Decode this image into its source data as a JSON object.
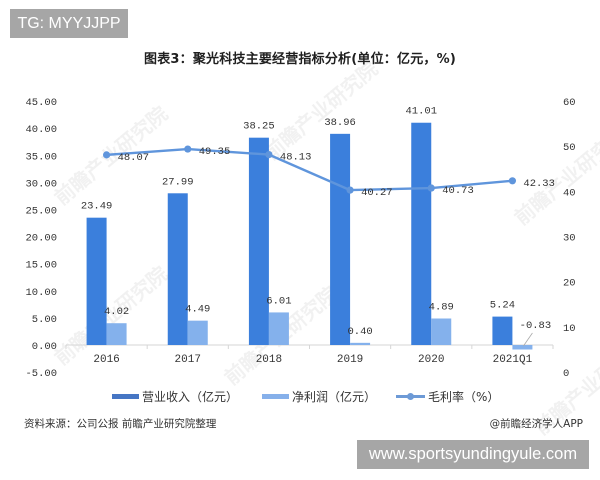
{
  "header": {
    "badge": "TG: MYYJJPP"
  },
  "chart_data": {
    "type": "bar",
    "combo": "bar+line (dual axis)",
    "title": "图表3：聚光科技主要经营指标分析(单位：亿元，%)",
    "xlabel": "",
    "ylabel": "",
    "categories": [
      "2016",
      "2017",
      "2018",
      "2019",
      "2020",
      "2021Q1"
    ],
    "series": [
      {
        "name": "营业收入（亿元）",
        "type": "bar",
        "axis": "left",
        "color": "#3b7fdc",
        "legend_color": "#4676c4",
        "values": [
          23.49,
          27.99,
          38.25,
          38.96,
          41.01,
          5.24
        ],
        "labels": [
          "23.49",
          "27.99",
          "38.25",
          "38.96",
          "41.01",
          "5.24"
        ]
      },
      {
        "name": "净利润（亿元）",
        "type": "bar",
        "axis": "left",
        "color": "#84b1ec",
        "legend_color": "#86b0ea",
        "values": [
          4.02,
          4.49,
          6.01,
          0.4,
          4.89,
          -0.83
        ],
        "labels": [
          "4.02",
          "4.49",
          "6.01",
          "0.40",
          "4.89",
          "-0.83"
        ]
      },
      {
        "name": "毛利率（%）",
        "type": "line",
        "axis": "right",
        "color": "#5f95dc",
        "legend_color": "#6d9ad6",
        "values": [
          48.07,
          49.35,
          48.13,
          40.27,
          40.73,
          42.33
        ],
        "labels": [
          "48.07",
          "49.35",
          "48.13",
          "40.27",
          "40.73",
          "42.33"
        ]
      }
    ],
    "y_left": {
      "ylim": [
        -5,
        45
      ],
      "ticks": [
        {
          "value": 45,
          "label": "45.00"
        },
        {
          "value": 40,
          "label": "40.00"
        },
        {
          "value": 35,
          "label": "35.00"
        },
        {
          "value": 30,
          "label": "30.00"
        },
        {
          "value": 25,
          "label": "25.00"
        },
        {
          "value": 20,
          "label": "20.00"
        },
        {
          "value": 15,
          "label": "15.00"
        },
        {
          "value": 10,
          "label": "10.00"
        },
        {
          "value": 5,
          "label": "5.00"
        },
        {
          "value": 0,
          "label": "0.00"
        },
        {
          "value": -5,
          "label": "-5.00"
        }
      ]
    },
    "y_right": {
      "ylim": [
        0,
        60
      ],
      "ticks": [
        {
          "value": 60,
          "label": "60"
        },
        {
          "value": 50,
          "label": "50"
        },
        {
          "value": 40,
          "label": "40"
        },
        {
          "value": 30,
          "label": "30"
        },
        {
          "value": 20,
          "label": "20"
        },
        {
          "value": 10,
          "label": "10"
        },
        {
          "value": 0,
          "label": "0"
        }
      ]
    },
    "grid": false,
    "legend_position": "bottom"
  },
  "footer": {
    "source": "资料来源：公司公报 前瞻产业研究院整理",
    "credit": "@前瞻经济学人APP"
  },
  "watermark": {
    "text": "前瞻产业研究院"
  },
  "url_badge": "www.sportsyundingyule.com"
}
